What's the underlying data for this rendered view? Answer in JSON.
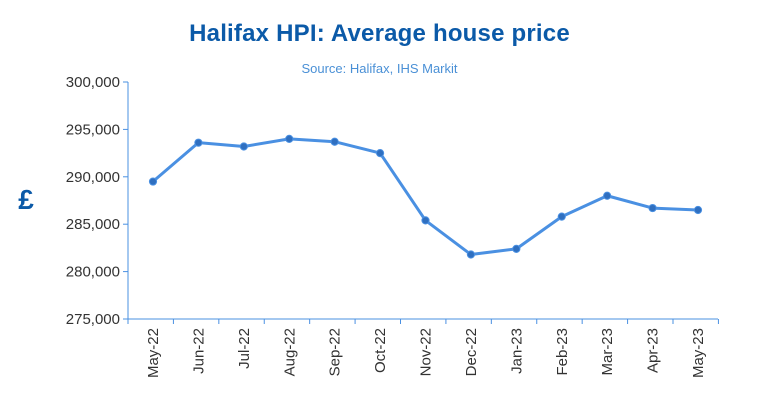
{
  "chart_data": {
    "type": "line",
    "title": "Halifax HPI: Average house price",
    "subtitle": "Source: Halifax, IHS Markit",
    "ylabel": "£",
    "xlabel": "",
    "ylim": [
      275000,
      300000
    ],
    "y_ticks": [
      "275,000",
      "280,000",
      "285,000",
      "290,000",
      "295,000",
      "300,000"
    ],
    "y_tick_values": [
      275000,
      280000,
      285000,
      290000,
      295000,
      300000
    ],
    "categories": [
      "May-22",
      "Jun-22",
      "Jul-22",
      "Aug-22",
      "Sep-22",
      "Oct-22",
      "Nov-22",
      "Dec-22",
      "Jan-23",
      "Feb-23",
      "Mar-23",
      "Apr-23",
      "May-23"
    ],
    "series": [
      {
        "values": [
          289500,
          293600,
          293200,
          294000,
          293700,
          292500,
          285400,
          281800,
          282400,
          285800,
          288000,
          286700,
          286500
        ]
      }
    ],
    "grid": false,
    "legend": "none",
    "colors": {
      "title": "#0b5aa8",
      "subtitle": "#4a90d6",
      "line": "#4a90e2",
      "marker": "#2f6fc0",
      "axis": "#4a90e2"
    }
  }
}
